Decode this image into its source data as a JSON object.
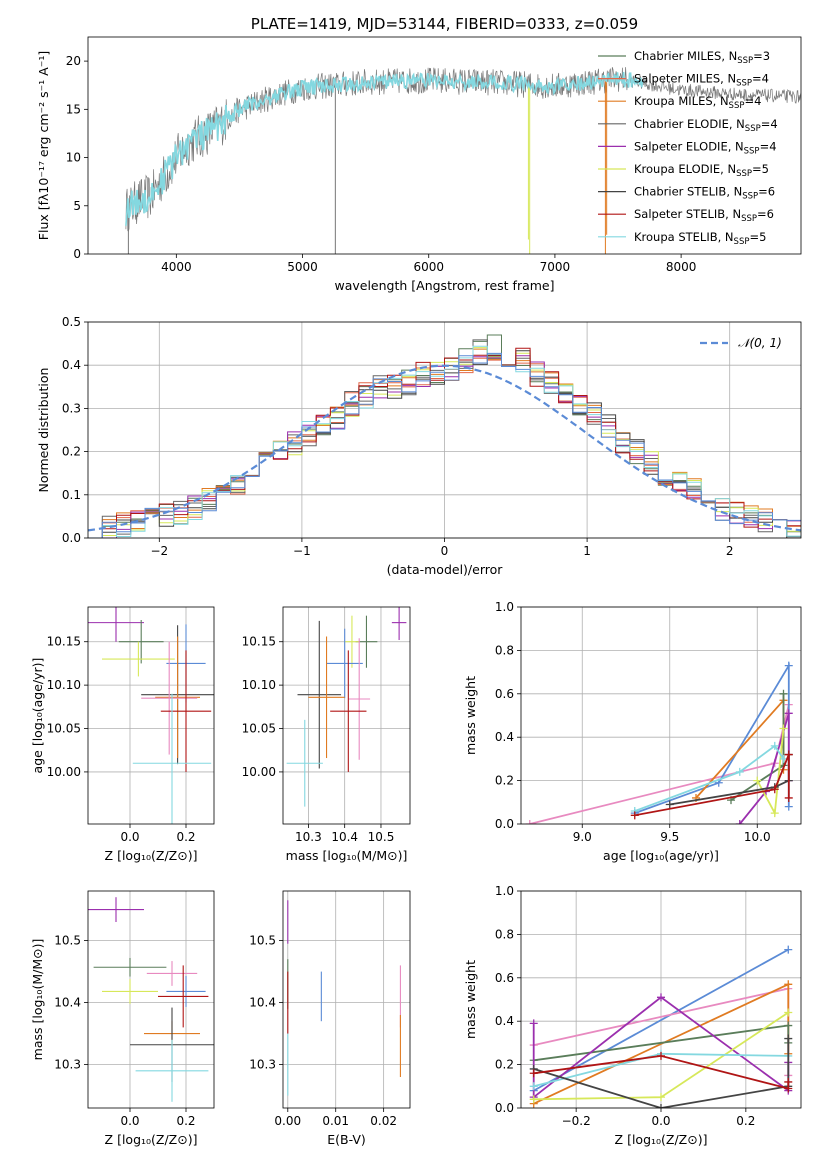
{
  "colors": {
    "chabrier_miles": "#5a7d5a",
    "salpeter_miles": "#e2684a",
    "kroupa_miles": "#e07b22",
    "chabrier_elodie": "#666666",
    "salpeter_elodie": "#9b2fae",
    "kroupa_elodie": "#d7e85a",
    "chabrier_stelib": "#444444",
    "salpeter_stelib": "#b01515",
    "kroupa_stelib": "#84d8e0",
    "extra_blue": "#5b8bd6",
    "extra_pink": "#e88ac0",
    "normal": "#5b8bd6"
  },
  "chart_data": [
    {
      "id": "spectrum",
      "type": "line",
      "title": "PLATE=1419, MJD=53144, FIBERID=0333, z=0.059",
      "xlabel": "wavelength [Angstrom, rest frame]",
      "ylabel": "Flux [fλ10⁻¹⁷ erg cm⁻² s⁻¹ A⁻¹]",
      "xlim": [
        3300,
        8950
      ],
      "ylim": [
        0,
        22.5
      ],
      "xticks": [
        "4000",
        "5000",
        "6000",
        "7000",
        "8000"
      ],
      "xtick_values": [
        4000,
        5000,
        6000,
        7000,
        8000
      ],
      "yticks": [
        "0",
        "5",
        "10",
        "15",
        "20"
      ],
      "ytick_values": [
        0,
        5,
        10,
        15,
        20
      ],
      "legend": [
        {
          "label": "Chabrier MILES, N",
          "sub": "SSP",
          "count": "=3",
          "color_key": "chabrier_miles"
        },
        {
          "label": "Salpeter MILES, N",
          "sub": "SSP",
          "count": "=4",
          "color_key": "salpeter_miles"
        },
        {
          "label": "Kroupa MILES, N",
          "sub": "SSP",
          "count": "=4",
          "color_key": "kroupa_miles"
        },
        {
          "label": "Chabrier ELODIE, N",
          "sub": "SSP",
          "count": "=4",
          "color_key": "chabrier_elodie"
        },
        {
          "label": "Salpeter ELODIE, N",
          "sub": "SSP",
          "count": "=4",
          "color_key": "salpeter_elodie"
        },
        {
          "label": "Kroupa ELODIE, N",
          "sub": "SSP",
          "count": "=5",
          "color_key": "kroupa_elodie"
        },
        {
          "label": "Chabrier STELIB, N",
          "sub": "SSP",
          "count": "=6",
          "color_key": "chabrier_stelib"
        },
        {
          "label": "Salpeter STELIB, N",
          "sub": "SSP",
          "count": "=6",
          "color_key": "salpeter_stelib"
        },
        {
          "label": "Kroupa STELIB, N",
          "sub": "SSP",
          "count": "=5",
          "color_key": "kroupa_stelib"
        }
      ],
      "legend_position": "right",
      "continuum_knots": [
        [
          3600,
          4.5
        ],
        [
          3700,
          5.5
        ],
        [
          3800,
          6.0
        ],
        [
          3900,
          8.0
        ],
        [
          4000,
          10.0
        ],
        [
          4100,
          11.5
        ],
        [
          4300,
          13.0
        ],
        [
          4500,
          15.0
        ],
        [
          4800,
          16.5
        ],
        [
          5000,
          17.2
        ],
        [
          5500,
          17.8
        ],
        [
          6000,
          18.0
        ],
        [
          6500,
          17.8
        ],
        [
          7000,
          17.4
        ],
        [
          7500,
          18.2
        ],
        [
          8000,
          17.0
        ],
        [
          8500,
          16.5
        ],
        [
          8950,
          16.3
        ]
      ],
      "spikes": [
        [
          5260,
          0
        ],
        [
          6800,
          0
        ],
        [
          6790,
          1.5
        ],
        [
          7400,
          0
        ],
        [
          7410,
          2.0
        ],
        [
          3620,
          0
        ]
      ]
    },
    {
      "id": "residuals",
      "type": "histogram",
      "xlabel": "(data-model)/error",
      "ylabel": "Normed distribution",
      "xlim": [
        -2.5,
        2.5
      ],
      "ylim": [
        0,
        0.5
      ],
      "xticks": [
        "−2",
        "−1",
        "0",
        "1",
        "2"
      ],
      "xtick_values": [
        -2,
        -1,
        0,
        1,
        2
      ],
      "yticks": [
        "0.0",
        "0.1",
        "0.2",
        "0.3",
        "0.4",
        "0.5"
      ],
      "ytick_values": [
        0,
        0.1,
        0.2,
        0.3,
        0.4,
        0.5
      ],
      "grid": true,
      "legend": [
        {
          "label": "𝒩(0, 1)",
          "color_key": "normal",
          "style": "dashed"
        }
      ],
      "legend_position": "top-right",
      "bin_width": 0.1,
      "bin_start": -2.5,
      "base_values": [
        0.025,
        0.025,
        0.03,
        0.035,
        0.04,
        0.05,
        0.06,
        0.07,
        0.09,
        0.11,
        0.13,
        0.15,
        0.17,
        0.2,
        0.22,
        0.24,
        0.26,
        0.28,
        0.31,
        0.33,
        0.35,
        0.35,
        0.36,
        0.38,
        0.38,
        0.39,
        0.41,
        0.43,
        0.44,
        0.42,
        0.41,
        0.38,
        0.36,
        0.34,
        0.31,
        0.29,
        0.26,
        0.22,
        0.2,
        0.17,
        0.15,
        0.13,
        0.11,
        0.09,
        0.07,
        0.06,
        0.05,
        0.04,
        0.03,
        0.02
      ],
      "series_color_keys": [
        "chabrier_miles",
        "salpeter_miles",
        "kroupa_miles",
        "chabrier_elodie",
        "salpeter_elodie",
        "kroupa_elodie",
        "chabrier_stelib",
        "salpeter_stelib",
        "kroupa_stelib",
        "extra_blue"
      ]
    },
    {
      "id": "z_vs_age",
      "type": "errorbar",
      "xlabel": "Z [log₁₀(Z/Z⊙)]",
      "ylabel": "age  [log₁₀(age/yr)]",
      "xlim": [
        -0.15,
        0.3
      ],
      "ylim": [
        9.94,
        10.19
      ],
      "xticks": [
        "0.0",
        "0.2"
      ],
      "xtick_values": [
        0.0,
        0.2
      ],
      "yticks": [
        "10.00",
        "10.05",
        "10.10",
        "10.15"
      ],
      "ytick_values": [
        10.0,
        10.05,
        10.1,
        10.15
      ],
      "points": [
        {
          "x": -0.05,
          "xerr": 0.1,
          "y": 10.172,
          "yerr": 0.022,
          "color_key": "salpeter_elodie"
        },
        {
          "x": 0.04,
          "xerr": 0.08,
          "y": 10.15,
          "yerr": 0.025,
          "color_key": "chabrier_miles"
        },
        {
          "x": 0.03,
          "xerr": 0.13,
          "y": 10.13,
          "yerr": 0.02,
          "color_key": "kroupa_elodie"
        },
        {
          "x": 0.2,
          "xerr": 0.07,
          "y": 10.125,
          "yerr": 0.045,
          "color_key": "extra_blue"
        },
        {
          "x": 0.17,
          "xerr": 0.13,
          "y": 10.089,
          "yerr": 0.08,
          "color_key": "chabrier_stelib"
        },
        {
          "x": 0.17,
          "xerr": 0.08,
          "y": 10.086,
          "yerr": 0.07,
          "color_key": "kroupa_miles"
        },
        {
          "x": 0.14,
          "xerr": 0.1,
          "y": 10.085,
          "yerr": 0.065,
          "color_key": "extra_pink"
        },
        {
          "x": 0.2,
          "xerr": 0.09,
          "y": 10.07,
          "yerr": 0.07,
          "color_key": "salpeter_stelib"
        },
        {
          "x": 0.15,
          "xerr": 0.14,
          "y": 10.01,
          "yerr": 0.08,
          "color_key": "kroupa_stelib"
        }
      ]
    },
    {
      "id": "mass_vs_age",
      "type": "errorbar",
      "xlabel": "mass [log₁₀(M/M⊙)]",
      "ylabel": "",
      "xlim": [
        10.23,
        10.58
      ],
      "ylim": [
        9.94,
        10.19
      ],
      "xticks": [
        "10.3",
        "10.4",
        "10.5"
      ],
      "xtick_values": [
        10.3,
        10.4,
        10.5
      ],
      "yticks": [
        "10.00",
        "10.05",
        "10.10",
        "10.15"
      ],
      "ytick_values": [
        10.0,
        10.05,
        10.1,
        10.15
      ],
      "points": [
        {
          "x": 10.55,
          "xerr": 0.02,
          "y": 10.172,
          "yerr": 0.02,
          "color_key": "salpeter_elodie"
        },
        {
          "x": 10.46,
          "xerr": 0.03,
          "y": 10.15,
          "yerr": 0.03,
          "color_key": "chabrier_miles"
        },
        {
          "x": 10.42,
          "xerr": 0.02,
          "y": 10.15,
          "yerr": 0.03,
          "color_key": "kroupa_elodie"
        },
        {
          "x": 10.4,
          "xerr": 0.05,
          "y": 10.125,
          "yerr": 0.04,
          "color_key": "extra_blue"
        },
        {
          "x": 10.33,
          "xerr": 0.06,
          "y": 10.089,
          "yerr": 0.085,
          "color_key": "chabrier_stelib"
        },
        {
          "x": 10.35,
          "xerr": 0.05,
          "y": 10.086,
          "yerr": 0.07,
          "color_key": "kroupa_miles"
        },
        {
          "x": 10.44,
          "xerr": 0.03,
          "y": 10.084,
          "yerr": 0.07,
          "color_key": "extra_pink"
        },
        {
          "x": 10.41,
          "xerr": 0.05,
          "y": 10.07,
          "yerr": 0.07,
          "color_key": "salpeter_stelib"
        },
        {
          "x": 10.29,
          "xerr": 0.05,
          "y": 10.01,
          "yerr": 0.05,
          "color_key": "kroupa_stelib"
        }
      ]
    },
    {
      "id": "age_weights",
      "type": "line",
      "xlabel": "age  [log₁₀(age/yr)]",
      "ylabel": "mass weight",
      "xlim": [
        8.65,
        10.25
      ],
      "ylim": [
        0,
        1
      ],
      "xticks": [
        "9.0",
        "9.5",
        "10.0"
      ],
      "xtick_values": [
        9.0,
        9.5,
        10.0
      ],
      "yticks": [
        "0.0",
        "0.2",
        "0.4",
        "0.6",
        "0.8",
        "1.0"
      ],
      "ytick_values": [
        0,
        0.2,
        0.4,
        0.6,
        0.8,
        1.0
      ],
      "grid": true,
      "series": [
        {
          "color_key": "extra_pink",
          "x": [
            8.7,
            10.1,
            10.18
          ],
          "y": [
            0.0,
            0.28,
            0.55
          ]
        },
        {
          "color_key": "extra_blue",
          "x": [
            9.3,
            9.78,
            10.18,
            10.18
          ],
          "y": [
            0.05,
            0.19,
            0.73,
            0.08
          ]
        },
        {
          "color_key": "kroupa_miles",
          "x": [
            9.65,
            10.15,
            10.15
          ],
          "y": [
            0.12,
            0.57,
            0.25
          ]
        },
        {
          "color_key": "chabrier_miles",
          "x": [
            9.85,
            10.15,
            10.15
          ],
          "y": [
            0.11,
            0.27,
            0.6
          ]
        },
        {
          "color_key": "salpeter_elodie",
          "x": [
            9.9,
            10.05,
            10.18,
            10.18
          ],
          "y": [
            0.0,
            0.15,
            0.51,
            0.2
          ]
        },
        {
          "color_key": "kroupa_elodie",
          "x": [
            10.0,
            10.1,
            10.15
          ],
          "y": [
            0.2,
            0.05,
            0.44
          ]
        },
        {
          "color_key": "kroupa_stelib",
          "x": [
            9.3,
            9.9,
            10.1,
            10.15
          ],
          "y": [
            0.06,
            0.24,
            0.36,
            0.3
          ]
        },
        {
          "color_key": "chabrier_stelib",
          "x": [
            9.5,
            10.1,
            10.18,
            10.18
          ],
          "y": [
            0.09,
            0.17,
            0.2,
            0.32
          ]
        },
        {
          "color_key": "salpeter_stelib",
          "x": [
            9.3,
            10.1,
            10.18,
            10.18
          ],
          "y": [
            0.04,
            0.16,
            0.32,
            0.12
          ]
        }
      ]
    },
    {
      "id": "z_vs_mass",
      "type": "errorbar",
      "xlabel": "Z [log₁₀(Z/Z⊙)]",
      "ylabel": "mass [log₁₀(M/M⊙)]",
      "xlim": [
        -0.15,
        0.3
      ],
      "ylim": [
        10.23,
        10.58
      ],
      "xticks": [
        "0.0",
        "0.2"
      ],
      "xtick_values": [
        0.0,
        0.2
      ],
      "yticks": [
        "10.3",
        "10.4",
        "10.5"
      ],
      "ytick_values": [
        10.3,
        10.4,
        10.5
      ],
      "points": [
        {
          "x": -0.05,
          "xerr": 0.1,
          "y": 10.55,
          "yerr": 0.02,
          "color_key": "salpeter_elodie"
        },
        {
          "x": 0.0,
          "xerr": 0.13,
          "y": 10.457,
          "yerr": 0.015,
          "color_key": "chabrier_miles"
        },
        {
          "x": 0.15,
          "xerr": 0.09,
          "y": 10.447,
          "yerr": 0.02,
          "color_key": "extra_pink"
        },
        {
          "x": 0.2,
          "xerr": 0.07,
          "y": 10.418,
          "yerr": 0.025,
          "color_key": "extra_blue"
        },
        {
          "x": 0.0,
          "xerr": 0.1,
          "y": 10.418,
          "yerr": 0.02,
          "color_key": "kroupa_elodie"
        },
        {
          "x": 0.19,
          "xerr": 0.09,
          "y": 10.41,
          "yerr": 0.05,
          "color_key": "salpeter_stelib"
        },
        {
          "x": 0.15,
          "xerr": 0.1,
          "y": 10.35,
          "yerr": 0.02,
          "color_key": "kroupa_miles"
        },
        {
          "x": 0.15,
          "xerr": 0.15,
          "y": 10.332,
          "yerr": 0.06,
          "color_key": "chabrier_stelib"
        },
        {
          "x": 0.15,
          "xerr": 0.13,
          "y": 10.29,
          "yerr": 0.05,
          "color_key": "kroupa_stelib"
        }
      ]
    },
    {
      "id": "ebv_vs_mass",
      "type": "errorbar",
      "xlabel": "E(B-V)",
      "ylabel": "",
      "xlim": [
        -0.001,
        0.0255
      ],
      "ylim": [
        10.23,
        10.58
      ],
      "xticks": [
        "0.00",
        "0.01",
        "0.02"
      ],
      "xtick_values": [
        0.0,
        0.01,
        0.02
      ],
      "yticks": [
        "10.3",
        "10.4",
        "10.5"
      ],
      "ytick_values": [
        10.3,
        10.4,
        10.5
      ],
      "points": [
        {
          "x": 0.0,
          "xerr": 0,
          "y": 10.53,
          "yerr": 0.035,
          "color_key": "salpeter_elodie"
        },
        {
          "x": 0.0,
          "xerr": 0,
          "y": 10.43,
          "yerr": 0.04,
          "color_key": "chabrier_miles"
        },
        {
          "x": 0.0,
          "xerr": 0,
          "y": 10.4,
          "yerr": 0.05,
          "color_key": "salpeter_stelib"
        },
        {
          "x": 0.0,
          "xerr": 0,
          "y": 10.3,
          "yerr": 0.05,
          "color_key": "kroupa_stelib"
        },
        {
          "x": 0.007,
          "xerr": 0,
          "y": 10.41,
          "yerr": 0.04,
          "color_key": "extra_blue"
        },
        {
          "x": 0.0235,
          "xerr": 0,
          "y": 10.41,
          "yerr": 0.05,
          "color_key": "extra_pink"
        },
        {
          "x": 0.0235,
          "xerr": 0,
          "y": 10.33,
          "yerr": 0.05,
          "color_key": "kroupa_miles"
        }
      ]
    },
    {
      "id": "z_weights",
      "type": "line",
      "xlabel": "Z [log₁₀(Z/Z⊙)]",
      "ylabel": "mass weight",
      "xlim": [
        -0.33,
        0.33
      ],
      "ylim": [
        0,
        1
      ],
      "xticks": [
        "−0.2",
        "0.0",
        "0.2"
      ],
      "xtick_values": [
        -0.2,
        0.0,
        0.2
      ],
      "yticks": [
        "0.0",
        "0.2",
        "0.4",
        "0.6",
        "0.8",
        "1.0"
      ],
      "ytick_values": [
        0,
        0.2,
        0.4,
        0.6,
        0.8,
        1.0
      ],
      "grid": true,
      "series": [
        {
          "color_key": "extra_blue",
          "x": [
            -0.3,
            0.3
          ],
          "y": [
            0.08,
            0.73
          ]
        },
        {
          "color_key": "extra_pink",
          "x": [
            -0.3,
            0.3,
            0.3
          ],
          "y": [
            0.29,
            0.55,
            0.15
          ]
        },
        {
          "color_key": "kroupa_miles",
          "x": [
            -0.3,
            0.3,
            0.3
          ],
          "y": [
            0.02,
            0.57,
            0.25
          ]
        },
        {
          "color_key": "chabrier_miles",
          "x": [
            -0.3,
            0.3,
            0.3
          ],
          "y": [
            0.22,
            0.38,
            0.3
          ]
        },
        {
          "color_key": "salpeter_elodie",
          "x": [
            -0.3,
            -0.3,
            0.0,
            0.3,
            0.3
          ],
          "y": [
            0.39,
            0.05,
            0.51,
            0.08,
            0.21
          ]
        },
        {
          "color_key": "kroupa_elodie",
          "x": [
            -0.3,
            0.0,
            0.3
          ],
          "y": [
            0.04,
            0.05,
            0.44
          ]
        },
        {
          "color_key": "kroupa_stelib",
          "x": [
            -0.3,
            0.0,
            0.3
          ],
          "y": [
            0.1,
            0.25,
            0.24
          ]
        },
        {
          "color_key": "chabrier_stelib",
          "x": [
            -0.3,
            0.0,
            0.3,
            0.3
          ],
          "y": [
            0.18,
            0.0,
            0.1,
            0.32
          ]
        },
        {
          "color_key": "salpeter_stelib",
          "x": [
            -0.3,
            0.0,
            0.3,
            0.3
          ],
          "y": [
            0.16,
            0.24,
            0.09,
            0.12
          ]
        }
      ]
    }
  ]
}
